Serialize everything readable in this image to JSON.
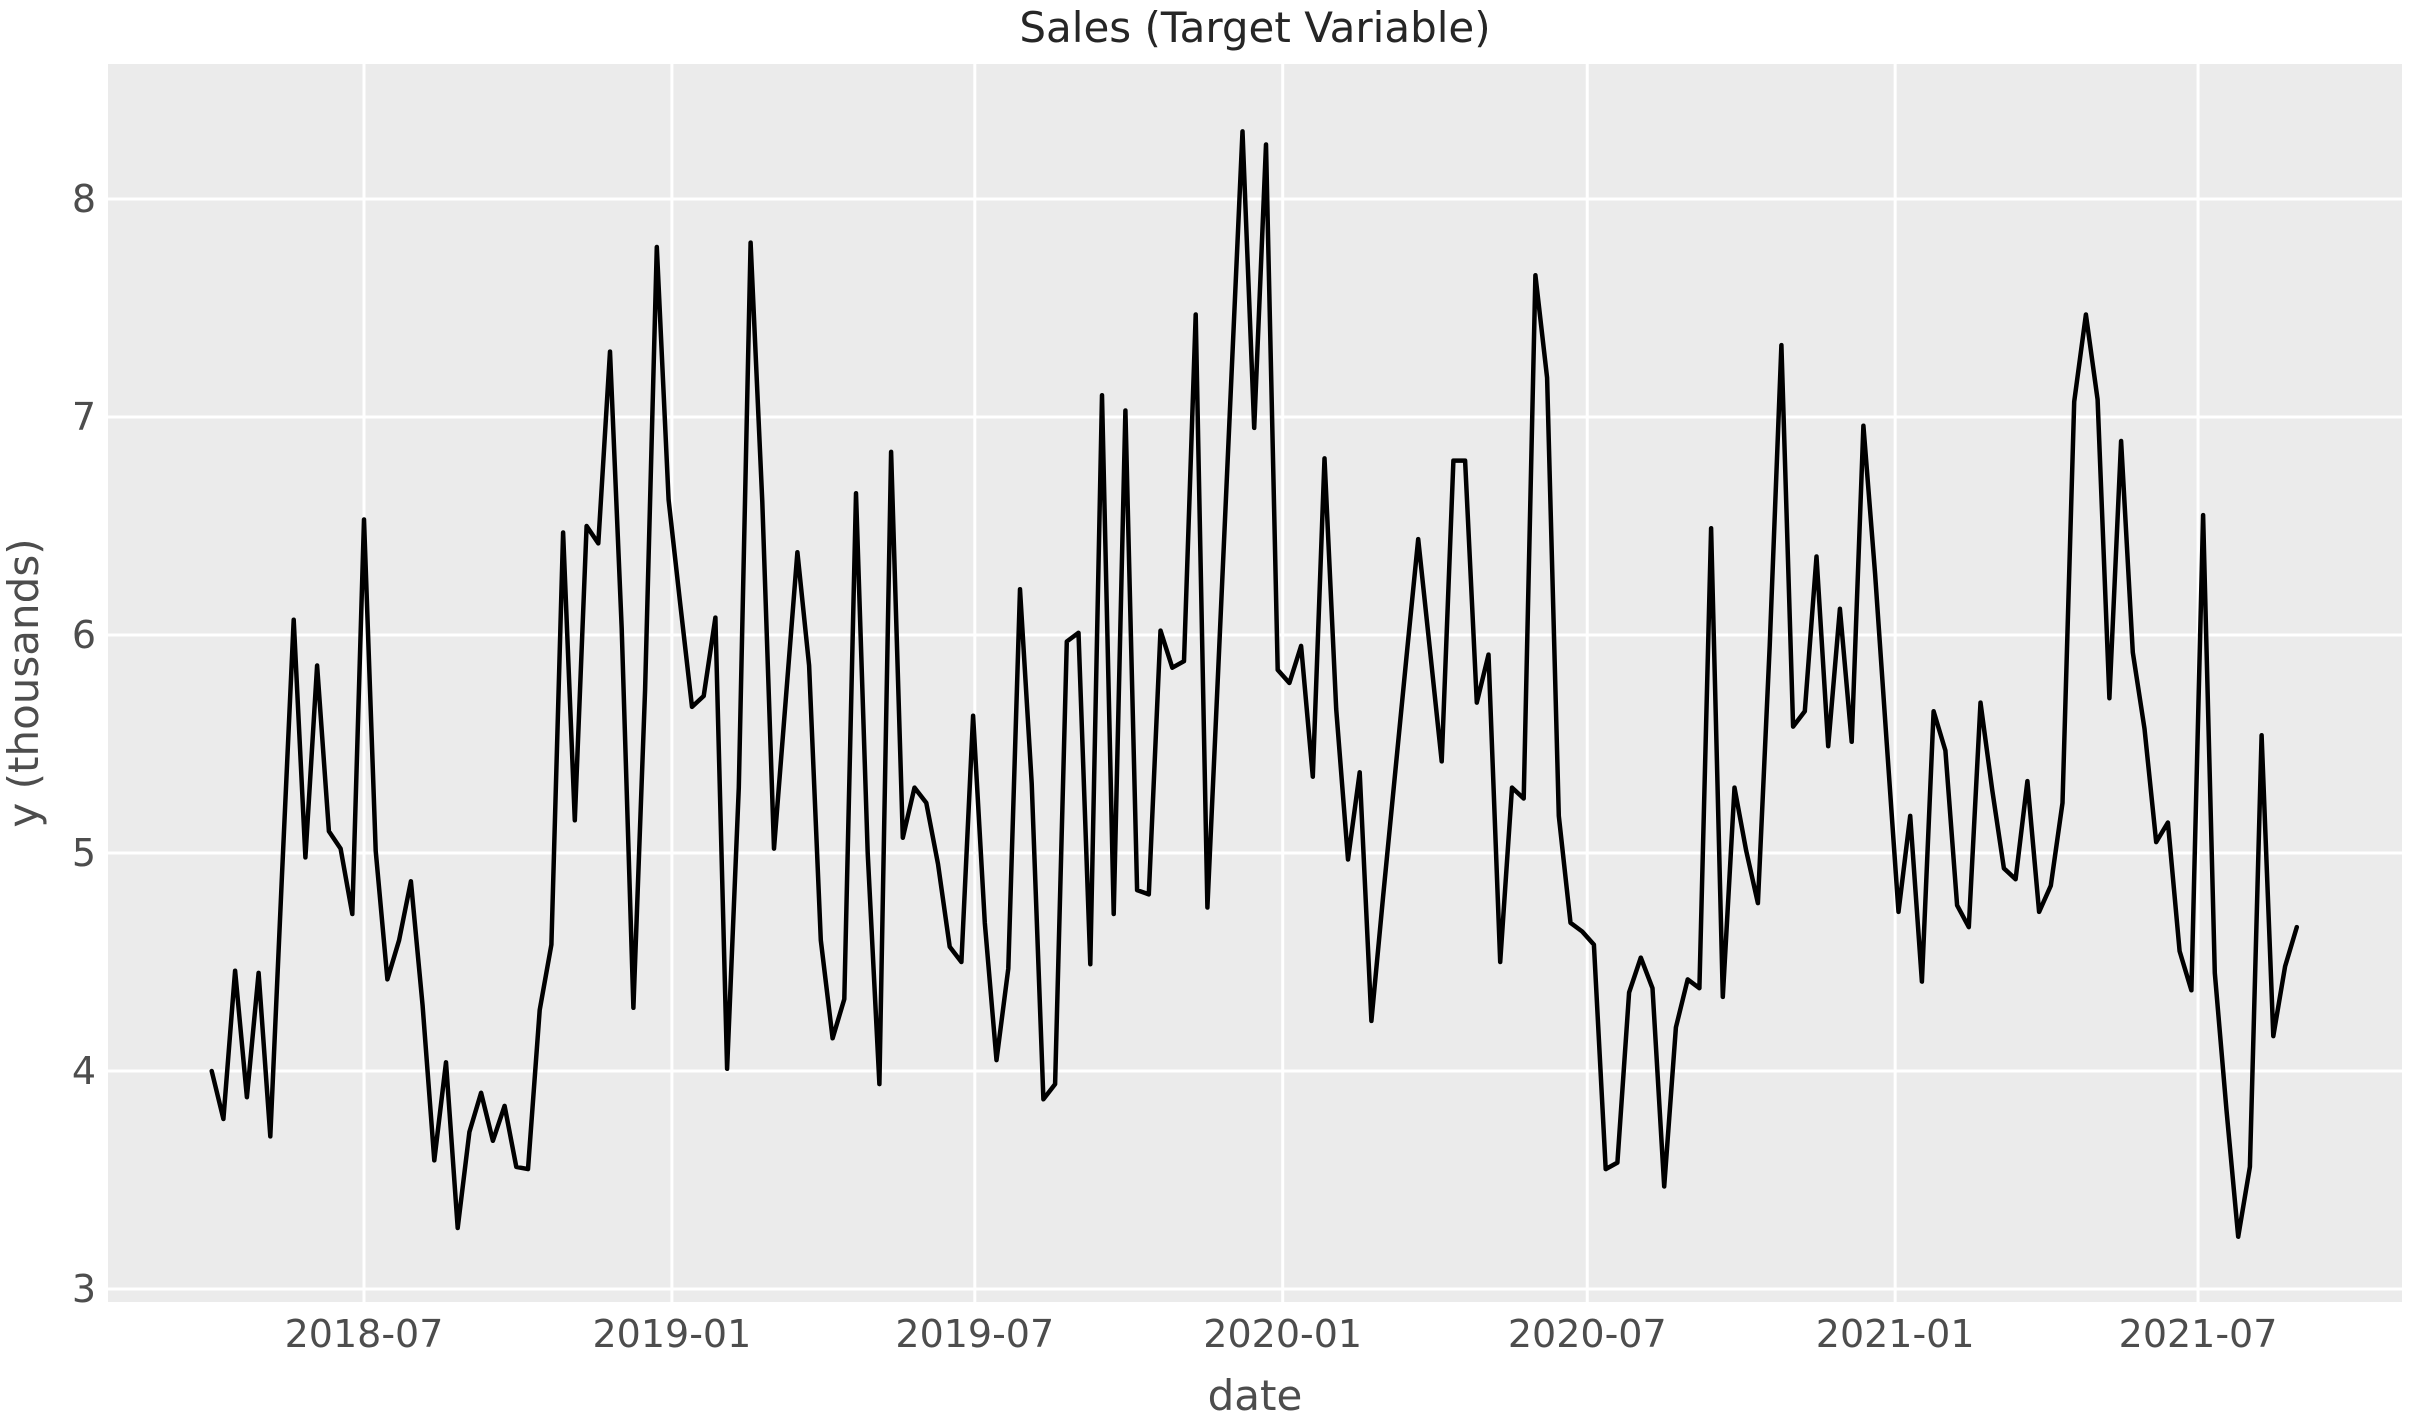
{
  "chart_data": {
    "type": "line",
    "title": "Sales (Target Variable)",
    "xlabel": "date",
    "ylabel": "y (thousands)",
    "legend": "none",
    "grid": true,
    "style": "ggplot",
    "colors": {
      "line": "#000000",
      "plot_background": "#ebebeb",
      "figure_background": "#ffffff",
      "grid": "#ffffff",
      "tick_text": "#4d4d4d",
      "title_text": "#262626"
    },
    "y_ticks": [
      3,
      4,
      5,
      6,
      7,
      8
    ],
    "ylim": [
      2.97,
      8.62
    ],
    "xlim": [
      "2018-01-29",
      "2021-10-31"
    ],
    "x_ticks": [
      {
        "label": "2018-07",
        "date": "2018-07-01"
      },
      {
        "label": "2019-01",
        "date": "2019-01-01"
      },
      {
        "label": "2019-07",
        "date": "2019-07-01"
      },
      {
        "label": "2020-01",
        "date": "2020-01-01"
      },
      {
        "label": "2020-07",
        "date": "2020-07-01"
      },
      {
        "label": "2021-01",
        "date": "2021-01-01"
      },
      {
        "label": "2021-07",
        "date": "2021-07-01"
      }
    ],
    "series": [
      {
        "name": "y",
        "frequency": "weekly",
        "dates": [
          "2018-04-01",
          "2018-04-08",
          "2018-04-15",
          "2018-04-22",
          "2018-04-29",
          "2018-05-06",
          "2018-05-13",
          "2018-05-20",
          "2018-05-27",
          "2018-06-03",
          "2018-06-10",
          "2018-06-17",
          "2018-06-24",
          "2018-07-01",
          "2018-07-08",
          "2018-07-15",
          "2018-07-22",
          "2018-07-29",
          "2018-08-05",
          "2018-08-12",
          "2018-08-19",
          "2018-08-26",
          "2018-09-02",
          "2018-09-09",
          "2018-09-16",
          "2018-09-23",
          "2018-09-30",
          "2018-10-07",
          "2018-10-14",
          "2018-10-21",
          "2018-10-28",
          "2018-11-04",
          "2018-11-11",
          "2018-11-18",
          "2018-11-25",
          "2018-12-02",
          "2018-12-09",
          "2018-12-16",
          "2018-12-23",
          "2018-12-30",
          "2019-01-06",
          "2019-01-13",
          "2019-01-20",
          "2019-01-27",
          "2019-02-03",
          "2019-02-10",
          "2019-02-17",
          "2019-02-24",
          "2019-03-03",
          "2019-03-10",
          "2019-03-17",
          "2019-03-24",
          "2019-03-31",
          "2019-04-07",
          "2019-04-14",
          "2019-04-21",
          "2019-04-28",
          "2019-05-05",
          "2019-05-12",
          "2019-05-19",
          "2019-05-26",
          "2019-06-02",
          "2019-06-09",
          "2019-06-16",
          "2019-06-23",
          "2019-06-30",
          "2019-07-07",
          "2019-07-14",
          "2019-07-21",
          "2019-07-28",
          "2019-08-04",
          "2019-08-11",
          "2019-08-18",
          "2019-08-25",
          "2019-09-01",
          "2019-09-08",
          "2019-09-15",
          "2019-09-22",
          "2019-09-29",
          "2019-10-06",
          "2019-10-13",
          "2019-10-20",
          "2019-10-27",
          "2019-11-03",
          "2019-11-10",
          "2019-11-17",
          "2019-11-24",
          "2019-12-01",
          "2019-12-08",
          "2019-12-15",
          "2019-12-22",
          "2019-12-29",
          "2020-01-05",
          "2020-01-12",
          "2020-01-19",
          "2020-01-26",
          "2020-02-02",
          "2020-02-09",
          "2020-02-16",
          "2020-02-23",
          "2020-03-01",
          "2020-03-08",
          "2020-03-15",
          "2020-03-22",
          "2020-03-29",
          "2020-04-05",
          "2020-04-12",
          "2020-04-19",
          "2020-04-26",
          "2020-05-03",
          "2020-05-10",
          "2020-05-17",
          "2020-05-24",
          "2020-05-31",
          "2020-06-07",
          "2020-06-14",
          "2020-06-21",
          "2020-06-28",
          "2020-07-05",
          "2020-07-12",
          "2020-07-19",
          "2020-07-26",
          "2020-08-02",
          "2020-08-09",
          "2020-08-16",
          "2020-08-23",
          "2020-08-30",
          "2020-09-06",
          "2020-09-13",
          "2020-09-20",
          "2020-09-27",
          "2020-10-04",
          "2020-10-11",
          "2020-10-18",
          "2020-10-25",
          "2020-11-01",
          "2020-11-08",
          "2020-11-15",
          "2020-11-22",
          "2020-11-29",
          "2020-12-06",
          "2020-12-13",
          "2020-12-20",
          "2020-12-27",
          "2021-01-03",
          "2021-01-10",
          "2021-01-17",
          "2021-01-24",
          "2021-01-31",
          "2021-02-07",
          "2021-02-14",
          "2021-02-21",
          "2021-02-28",
          "2021-03-07",
          "2021-03-14",
          "2021-03-21",
          "2021-03-28",
          "2021-04-04",
          "2021-04-11",
          "2021-04-18",
          "2021-04-25",
          "2021-05-02",
          "2021-05-09",
          "2021-05-16",
          "2021-05-23",
          "2021-05-30",
          "2021-06-06",
          "2021-06-13",
          "2021-06-20",
          "2021-06-27",
          "2021-07-04",
          "2021-07-11",
          "2021-07-18",
          "2021-07-25",
          "2021-08-01",
          "2021-08-08",
          "2021-08-15",
          "2021-08-22",
          "2021-08-29"
        ],
        "values": [
          4.0,
          3.78,
          4.46,
          3.88,
          4.45,
          3.7,
          4.9,
          6.07,
          4.98,
          5.86,
          5.1,
          5.02,
          4.72,
          6.53,
          5.01,
          4.42,
          4.6,
          4.87,
          4.3,
          3.59,
          4.04,
          3.28,
          3.72,
          3.9,
          3.68,
          3.84,
          3.56,
          3.55,
          4.28,
          4.58,
          6.47,
          5.15,
          6.5,
          6.42,
          7.3,
          6.03,
          4.29,
          5.75,
          7.78,
          6.62,
          6.14,
          5.67,
          5.72,
          6.08,
          4.01,
          5.3,
          7.8,
          6.61,
          5.02,
          5.7,
          6.38,
          5.86,
          4.6,
          4.15,
          4.33,
          6.65,
          5.0,
          3.94,
          6.84,
          5.07,
          5.3,
          5.23,
          4.95,
          4.57,
          4.5,
          5.63,
          4.68,
          4.05,
          4.47,
          6.21,
          5.32,
          3.87,
          3.94,
          5.97,
          6.01,
          4.49,
          7.1,
          4.72,
          7.03,
          4.83,
          4.81,
          6.02,
          5.85,
          5.88,
          7.47,
          4.75,
          5.93,
          7.12,
          8.31,
          6.95,
          8.25,
          5.84,
          5.78,
          5.95,
          5.35,
          6.81,
          5.66,
          4.97,
          5.37,
          4.23,
          4.8,
          5.35,
          5.9,
          6.44,
          5.93,
          5.42,
          6.8,
          6.8,
          5.69,
          5.91,
          4.5,
          5.3,
          5.25,
          7.65,
          7.18,
          5.17,
          4.68,
          4.64,
          4.58,
          3.55,
          3.58,
          4.36,
          4.52,
          4.38,
          3.47,
          4.2,
          4.42,
          4.38,
          6.49,
          4.34,
          5.3,
          5.01,
          4.77,
          5.95,
          7.33,
          5.58,
          5.65,
          6.36,
          5.49,
          6.12,
          5.51,
          6.96,
          6.28,
          5.5,
          4.73,
          5.17,
          4.41,
          5.65,
          5.47,
          4.76,
          4.66,
          5.69,
          5.29,
          4.93,
          4.88,
          5.33,
          4.73,
          4.85,
          5.23,
          7.07,
          7.47,
          7.08,
          5.71,
          6.89,
          5.92,
          5.57,
          5.05,
          5.14,
          4.55,
          4.37,
          6.55,
          4.45,
          3.82,
          3.24,
          3.56,
          5.54,
          4.16,
          4.48,
          4.66
        ]
      }
    ]
  }
}
